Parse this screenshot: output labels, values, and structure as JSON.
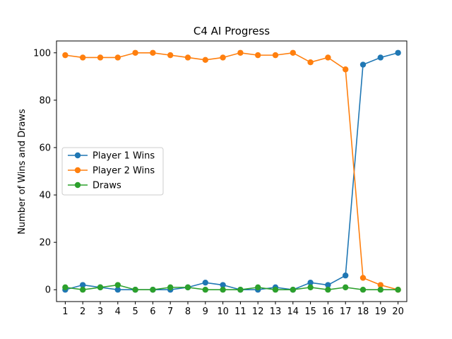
{
  "chart_data": {
    "type": "line",
    "title": "C4 AI Progress",
    "xlabel": "",
    "ylabel": "Number of Wins and Draws",
    "x": [
      1,
      2,
      3,
      4,
      5,
      6,
      7,
      8,
      9,
      10,
      11,
      12,
      13,
      14,
      15,
      16,
      17,
      18,
      19,
      20
    ],
    "xlim": [
      0.5,
      20.5
    ],
    "ylim": [
      -5,
      105
    ],
    "yticks": [
      0,
      20,
      40,
      60,
      80,
      100
    ],
    "grid": false,
    "legend_position": "center-left",
    "series": [
      {
        "name": "Player 1 Wins",
        "color": "#1f77b4",
        "marker": "circle",
        "values": [
          0,
          2,
          1,
          0,
          0,
          0,
          0,
          1,
          3,
          2,
          0,
          0,
          1,
          0,
          3,
          2,
          6,
          95,
          98,
          100
        ]
      },
      {
        "name": "Player 2 Wins",
        "color": "#ff7f0e",
        "marker": "circle",
        "values": [
          99,
          98,
          98,
          98,
          100,
          100,
          99,
          98,
          97,
          98,
          100,
          99,
          99,
          100,
          96,
          98,
          93,
          5,
          2,
          0
        ]
      },
      {
        "name": "Draws",
        "color": "#2ca02c",
        "marker": "circle",
        "values": [
          1,
          0,
          1,
          2,
          0,
          0,
          1,
          1,
          0,
          0,
          0,
          1,
          0,
          0,
          1,
          0,
          1,
          0,
          0,
          0
        ]
      }
    ]
  }
}
